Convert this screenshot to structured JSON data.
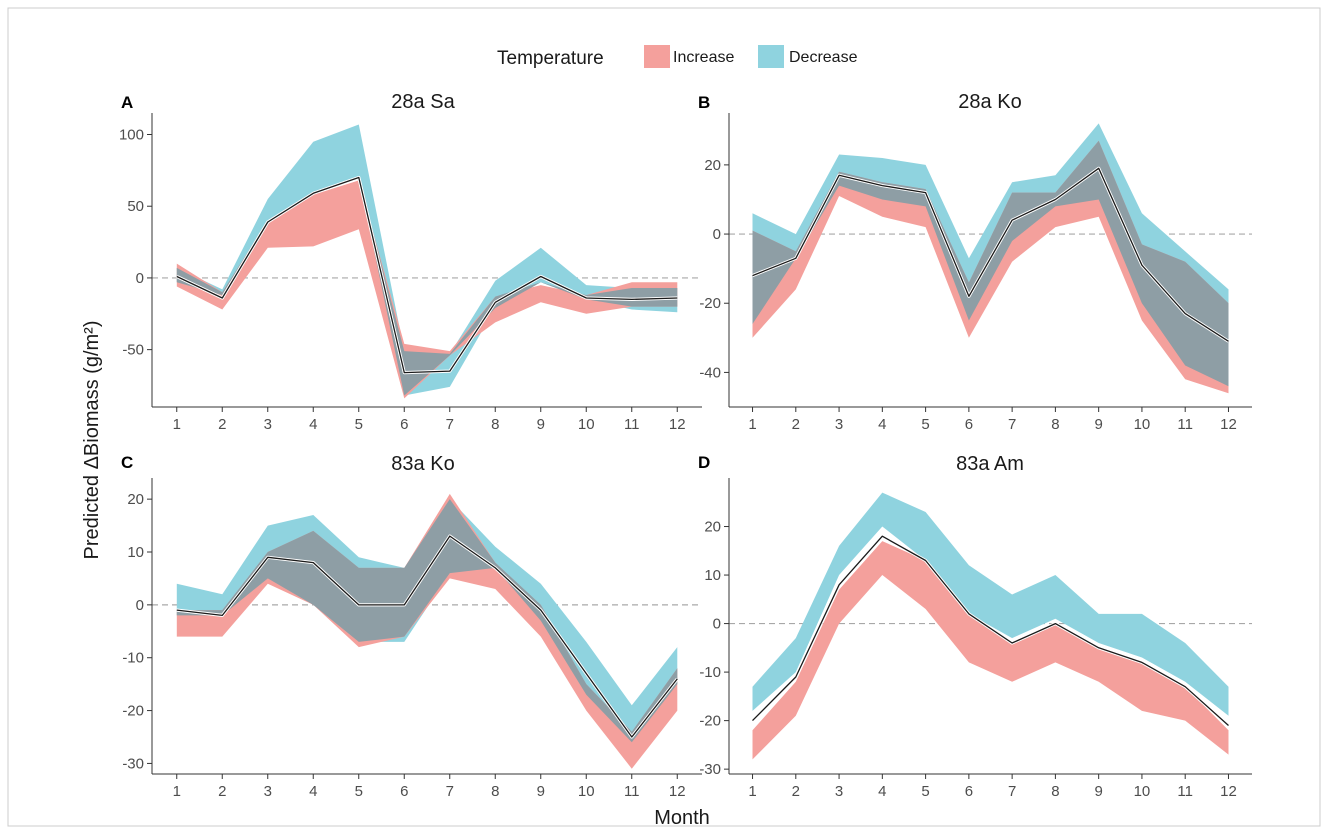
{
  "figure": {
    "xlabel": "Month",
    "ylabel": "Predicted ΔBiomass (g/m²)"
  },
  "legend": {
    "title": "Temperature",
    "items": [
      {
        "label": "Increase",
        "color": "#F4A09C"
      },
      {
        "label": "Decrease",
        "color": "#8FD3DF"
      }
    ]
  },
  "colors": {
    "increase": "#F4A09C",
    "decrease": "#8FD3DF",
    "overlap": "#8E9EA5",
    "line": "#1a1a1a",
    "zero_line": "#a8a8a8",
    "frame": "#cccccc"
  },
  "chart_data": [
    {
      "type": "area",
      "letter": "A",
      "title": "28a Sa",
      "x": [
        1,
        2,
        3,
        4,
        5,
        6,
        7,
        8,
        9,
        10,
        11,
        12
      ],
      "ylim": [
        -90,
        115
      ],
      "yticks": [
        -50,
        0,
        50,
        100
      ],
      "series": [
        {
          "name": "Increase",
          "lower": [
            -6,
            -22,
            21,
            22,
            34,
            -84,
            -54,
            -31,
            -17,
            -25,
            -20,
            -20
          ],
          "upper": [
            10,
            -10,
            40,
            58,
            68,
            -46,
            -51,
            -13,
            -5,
            -12,
            -3,
            -3
          ]
        },
        {
          "name": "Decrease",
          "lower": [
            -3,
            -12,
            38,
            60,
            70,
            -82,
            -76,
            -21,
            -3,
            -15,
            -22,
            -24
          ],
          "upper": [
            7,
            -8,
            55,
            95,
            107,
            -51,
            -53,
            -2,
            21,
            -5,
            -7,
            -7
          ]
        }
      ],
      "line": [
        1,
        -14,
        39,
        59,
        70,
        -66,
        -65,
        -17,
        1,
        -14,
        -15,
        -14
      ]
    },
    {
      "type": "area",
      "letter": "B",
      "title": "28a Ko",
      "x": [
        1,
        2,
        3,
        4,
        5,
        6,
        7,
        8,
        9,
        10,
        11,
        12
      ],
      "ylim": [
        -50,
        35
      ],
      "yticks": [
        -40,
        -20,
        0,
        20
      ],
      "series": [
        {
          "name": "Increase",
          "lower": [
            -30,
            -16,
            11,
            5,
            2,
            -30,
            -8,
            2,
            5,
            -25,
            -42,
            -46
          ],
          "upper": [
            1,
            -5,
            18,
            15,
            13,
            -14,
            12,
            12,
            27,
            -3,
            -8,
            -20
          ]
        },
        {
          "name": "Decrease",
          "lower": [
            -26,
            -7,
            14,
            10,
            8,
            -25,
            -2,
            8,
            10,
            -20,
            -38,
            -44
          ],
          "upper": [
            6,
            0,
            23,
            22,
            20,
            -7,
            15,
            17,
            32,
            6,
            -5,
            -16
          ]
        }
      ],
      "line": [
        -12,
        -7,
        17,
        14,
        12,
        -18,
        4,
        10,
        19,
        -9,
        -23,
        -31
      ]
    },
    {
      "type": "area",
      "letter": "C",
      "title": "83a Ko",
      "x": [
        1,
        2,
        3,
        4,
        5,
        6,
        7,
        8,
        9,
        10,
        11,
        12
      ],
      "ylim": [
        -32,
        24
      ],
      "yticks": [
        -30,
        -20,
        -10,
        0,
        10,
        20
      ],
      "series": [
        {
          "name": "Increase",
          "lower": [
            -6,
            -6,
            4,
            0,
            -8,
            -6,
            5,
            3,
            -6,
            -20,
            -31,
            -20
          ],
          "upper": [
            -1,
            -1,
            10,
            14,
            7,
            7,
            21,
            8,
            0,
            -15,
            -24,
            -12
          ]
        },
        {
          "name": "Decrease",
          "lower": [
            -2,
            -2,
            5,
            0,
            -7,
            -7,
            6,
            7,
            -3,
            -17,
            -26,
            -15
          ],
          "upper": [
            4,
            2,
            15,
            17,
            9,
            7,
            20,
            11,
            4,
            -7,
            -19,
            -8
          ]
        }
      ],
      "line": [
        -1,
        -2,
        9,
        8,
        0,
        0,
        13,
        7,
        -1,
        -13,
        -25,
        -14
      ]
    },
    {
      "type": "area",
      "letter": "D",
      "title": "83a Am",
      "x": [
        1,
        2,
        3,
        4,
        5,
        6,
        7,
        8,
        9,
        10,
        11,
        12
      ],
      "ylim": [
        -31,
        30
      ],
      "yticks": [
        -30,
        -20,
        -10,
        0,
        10,
        20
      ],
      "series": [
        {
          "name": "Increase",
          "lower": [
            -28,
            -19,
            0,
            10,
            3,
            -8,
            -12,
            -8,
            -12,
            -18,
            -20,
            -27
          ],
          "upper": [
            -22,
            -12,
            7,
            17,
            13,
            2,
            -4,
            0,
            -5,
            -8,
            -13,
            -22
          ]
        },
        {
          "name": "Decrease",
          "lower": [
            -18,
            -10,
            10,
            20,
            13,
            2,
            -3,
            1,
            -4,
            -7,
            -12,
            -19
          ],
          "upper": [
            -13,
            -3,
            16,
            27,
            23,
            12,
            6,
            10,
            2,
            2,
            -4,
            -13
          ]
        }
      ],
      "line": [
        -20,
        -11,
        8,
        18,
        13,
        2,
        -4,
        0,
        -5,
        -8,
        -13,
        -21
      ]
    }
  ]
}
